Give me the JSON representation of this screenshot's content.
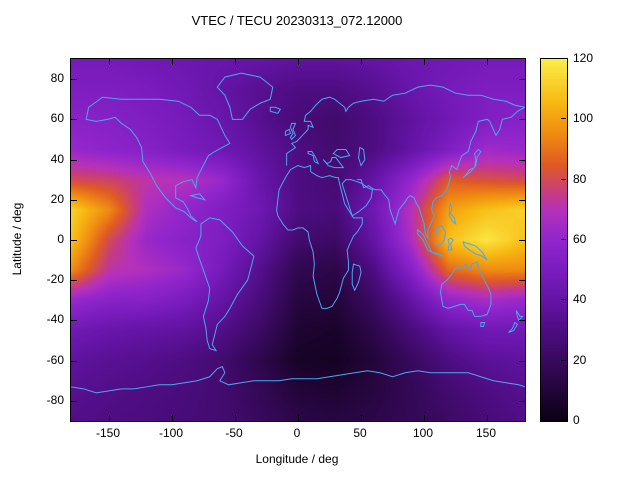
{
  "chart_data": {
    "type": "heatmap",
    "title": "VTEC / TECU 20230313_072.12000",
    "xlabel": "Longitude / deg",
    "ylabel": "Latitude / deg",
    "units": "TECU",
    "xlim": [
      -180,
      180
    ],
    "ylim": [
      -90,
      90
    ],
    "zlim": [
      0,
      120
    ],
    "xticks": [
      -150,
      -100,
      -50,
      0,
      50,
      100,
      150
    ],
    "yticks": [
      -80,
      -60,
      -40,
      -20,
      0,
      20,
      40,
      60,
      80
    ],
    "colorbar_ticks": [
      0,
      20,
      40,
      60,
      80,
      100,
      120
    ],
    "x_lon": [
      -180,
      -150,
      -120,
      -90,
      -60,
      -30,
      0,
      30,
      60,
      90,
      120,
      150,
      180
    ],
    "y_lat": [
      90,
      75,
      60,
      45,
      30,
      15,
      0,
      -15,
      -30,
      -45,
      -60,
      -75,
      -90
    ],
    "values": [
      [
        48,
        48,
        46,
        44,
        42,
        40,
        38,
        38,
        40,
        44,
        46,
        48,
        48
      ],
      [
        52,
        52,
        50,
        46,
        40,
        34,
        30,
        30,
        34,
        42,
        48,
        52,
        52
      ],
      [
        56,
        55,
        52,
        48,
        42,
        34,
        27,
        24,
        30,
        38,
        46,
        53,
        56
      ],
      [
        62,
        58,
        55,
        50,
        45,
        38,
        30,
        25,
        30,
        40,
        52,
        64,
        62
      ],
      [
        80,
        78,
        72,
        70,
        62,
        42,
        30,
        26,
        40,
        60,
        85,
        82,
        80
      ],
      [
        112,
        95,
        68,
        60,
        52,
        45,
        30,
        28,
        45,
        70,
        100,
        108,
        112
      ],
      [
        108,
        80,
        62,
        56,
        52,
        40,
        25,
        22,
        40,
        68,
        108,
        118,
        108
      ],
      [
        95,
        72,
        68,
        62,
        48,
        33,
        16,
        14,
        30,
        55,
        88,
        95,
        95
      ],
      [
        62,
        56,
        55,
        50,
        40,
        28,
        12,
        10,
        22,
        40,
        60,
        66,
        62
      ],
      [
        46,
        42,
        40,
        38,
        32,
        22,
        8,
        6,
        15,
        28,
        40,
        46,
        46
      ],
      [
        38,
        35,
        33,
        30,
        25,
        15,
        5,
        4,
        10,
        20,
        30,
        36,
        38
      ],
      [
        34,
        32,
        30,
        28,
        25,
        18,
        10,
        8,
        12,
        18,
        25,
        30,
        34
      ],
      [
        32,
        30,
        29,
        27,
        25,
        20,
        14,
        12,
        14,
        18,
        22,
        27,
        32
      ]
    ],
    "palette_stops": [
      {
        "t": 0.0,
        "c": "#0b0114"
      },
      {
        "t": 0.083,
        "c": "#23053a"
      },
      {
        "t": 0.167,
        "c": "#38095e"
      },
      {
        "t": 0.25,
        "c": "#4e0d82"
      },
      {
        "t": 0.333,
        "c": "#6414a6"
      },
      {
        "t": 0.417,
        "c": "#7a1cbe"
      },
      {
        "t": 0.5,
        "c": "#9126cc"
      },
      {
        "t": 0.583,
        "c": "#b631bb"
      },
      {
        "t": 0.625,
        "c": "#c53a86"
      },
      {
        "t": 0.708,
        "c": "#e05a25"
      },
      {
        "t": 0.792,
        "c": "#ef8b12"
      },
      {
        "t": 0.875,
        "c": "#f7b511"
      },
      {
        "t": 1.0,
        "c": "#fbee4a"
      }
    ],
    "coastline_color": "#4aa8f0",
    "axis_color": "#000000",
    "background_color": "#ffffff",
    "legend": "colorbar-right",
    "grid": false
  }
}
